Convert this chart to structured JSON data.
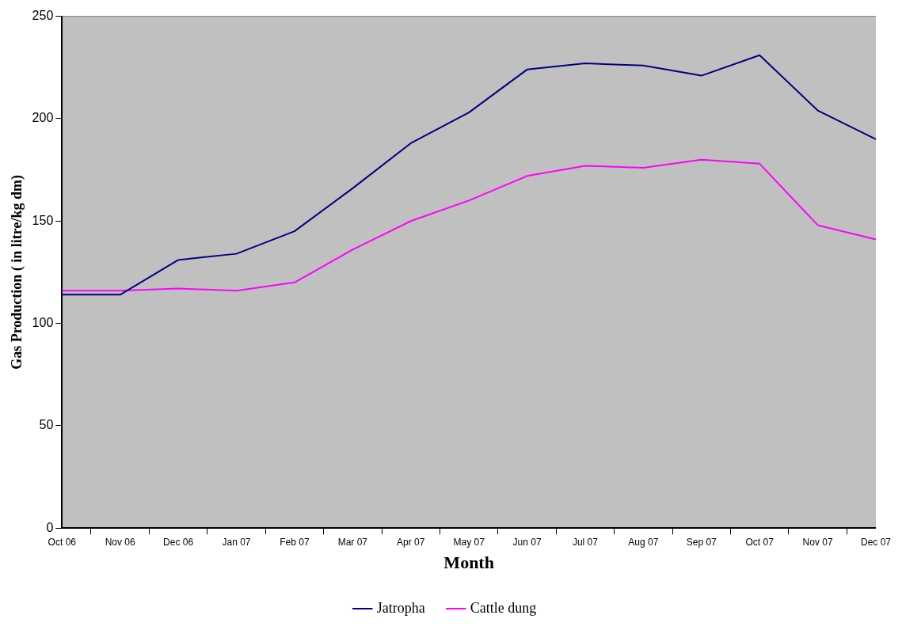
{
  "chart_data": {
    "type": "line",
    "xlabel": "Month",
    "ylabel": "Gas Production ( in litre/kg dm)",
    "categories": [
      "Oct 06",
      "Nov 06",
      "Dec 06",
      "Jan 07",
      "Feb 07",
      "Mar 07",
      "Apr 07",
      "May 07",
      "Jun 07",
      "Jul 07",
      "Aug 07",
      "Sep 07",
      "Oct 07",
      "Nov 07",
      "Dec 07"
    ],
    "series": [
      {
        "name": "Jatropha",
        "color": "#000080",
        "values": [
          114,
          114,
          131,
          134,
          145,
          166,
          188,
          203,
          224,
          227,
          226,
          221,
          231,
          204,
          190
        ]
      },
      {
        "name": "Cattle dung",
        "color": "#ff00ff",
        "values": [
          116,
          116,
          117,
          116,
          120,
          136,
          150,
          160,
          172,
          177,
          176,
          180,
          178,
          148,
          141
        ]
      }
    ],
    "ylim": [
      0,
      250
    ],
    "yticks": [
      0,
      50,
      100,
      150,
      200,
      250
    ],
    "grid": false,
    "legend": "bottom",
    "marker": "none",
    "line_style": "solid"
  }
}
